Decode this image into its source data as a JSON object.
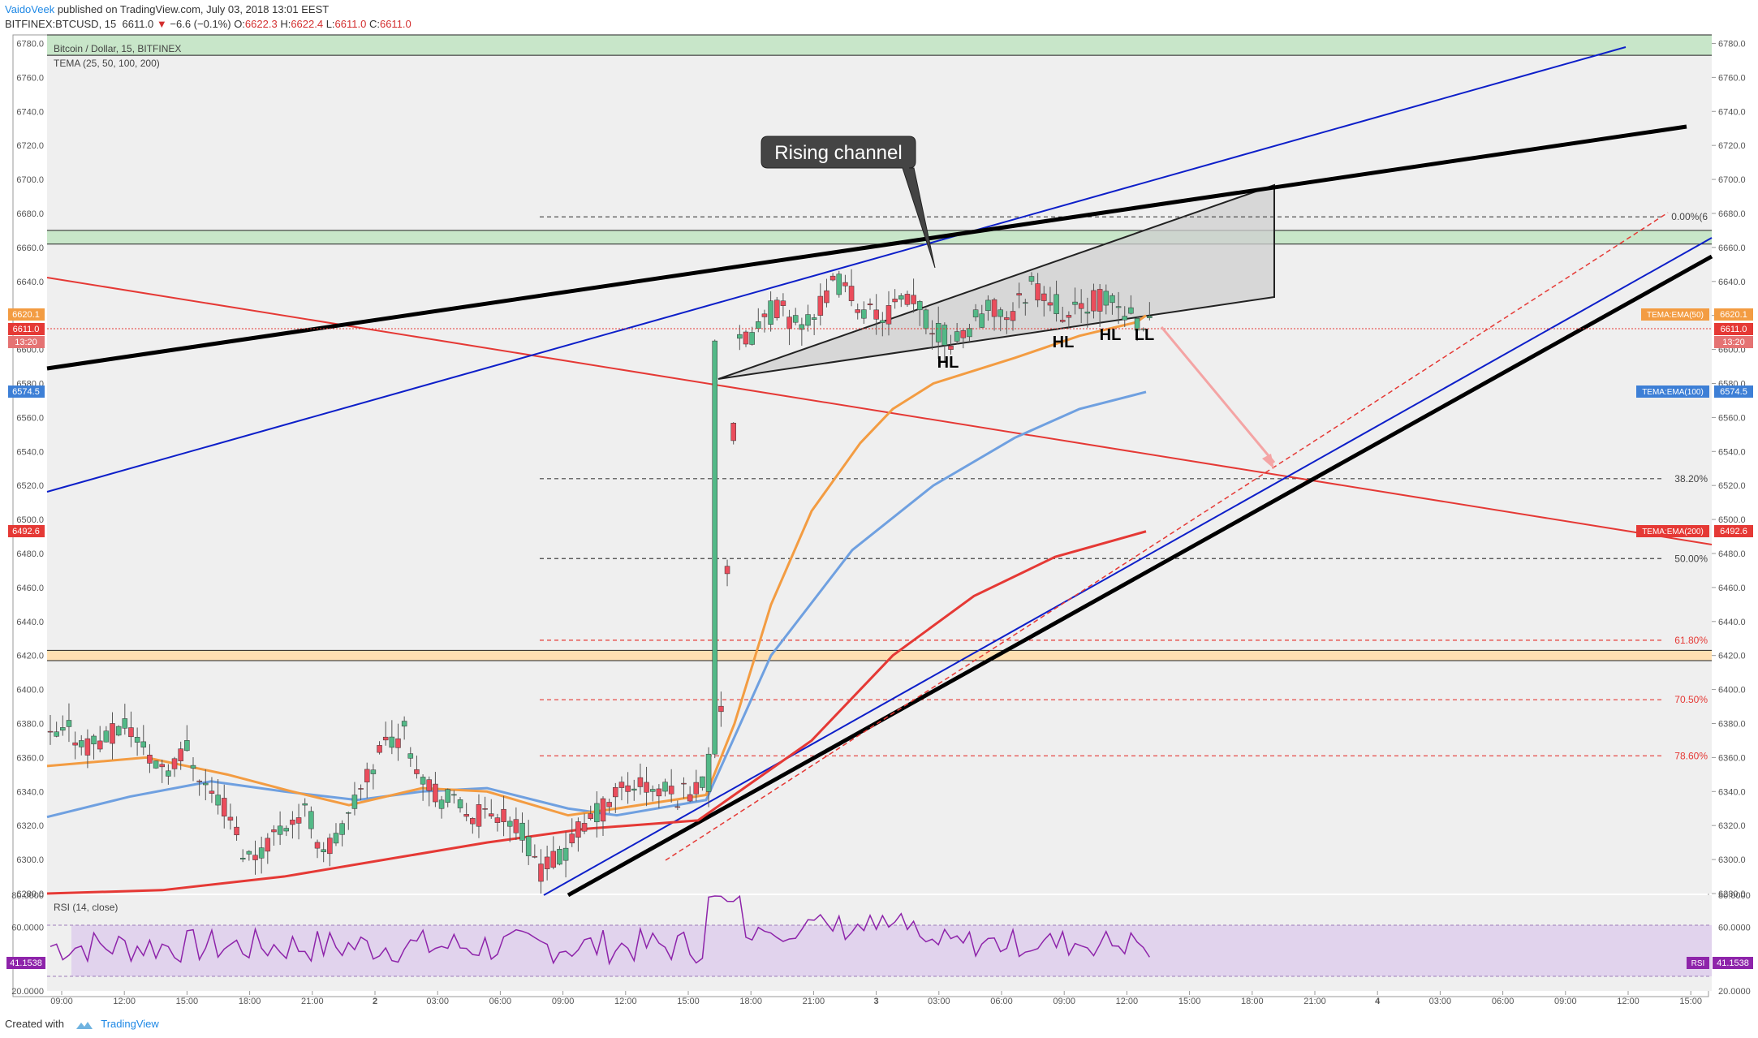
{
  "header": {
    "author": "VaidoVeek",
    "published_text": "published on TradingView.com, July 03, 2018 13:01 EEST",
    "symbol": "BITFINEX:BTCUSD, 15",
    "last": "6611.0",
    "change": "−6.6 (−0.1%)",
    "o_label": "O:",
    "o": "6622.3",
    "h_label": "H:",
    "h": "6622.4",
    "l_label": "L:",
    "l": "6611.0",
    "c_label": "C:",
    "c": "6611.0"
  },
  "legend": {
    "title": "Bitcoin / Dollar, 15, BITFINEX",
    "indicator": "TEMA (25, 50, 100, 200)",
    "rsi": "RSI (14, close)"
  },
  "annotations": {
    "callout": "Rising channel",
    "hl1": "HL",
    "hl2": "HL",
    "hl3": "HL",
    "ll": "LL"
  },
  "fib": {
    "levels": [
      {
        "label": "0.00%(6",
        "price": 6678,
        "color": "#444444"
      },
      {
        "label": "38.20%",
        "price": 6524,
        "color": "#444444"
      },
      {
        "label": "50.00%",
        "price": 6477,
        "color": "#444444"
      },
      {
        "label": "61.80%",
        "price": 6429,
        "color": "#e53935"
      },
      {
        "label": "70.50%",
        "price": 6394,
        "color": "#e53935"
      },
      {
        "label": "78.60%",
        "price": 6361,
        "color": "#e53935"
      }
    ]
  },
  "right_labels": {
    "ema50_name": "TEMA:EMA(50)",
    "ema50_val": "6620.1",
    "last_val": "6611.0",
    "countdown": "13:20",
    "ema100_name": "TEMA:EMA(100)",
    "ema100_val": "6574.5",
    "ema200_name": "TEMA:EMA(200)",
    "ema200_val": "6492.6",
    "rsi_name": "RSI",
    "rsi_val": "41.1538"
  },
  "left_labels": {
    "ema50_val": "6620.1",
    "last_val": "6611.0",
    "countdown": "13:20",
    "ema100_val": "6574.5",
    "ema200_val": "6492.6",
    "rsi_val": "41.1538"
  },
  "footer": {
    "created": "Created with",
    "brand": "TradingView"
  },
  "colors": {
    "up": "#53b987",
    "down": "#eb4d5c",
    "ema50": "#f39c42",
    "ema100": "#6fa0e0",
    "ema200": "#e53935",
    "rsi": "#8e24aa",
    "blue_line": "#0d1fc9"
  },
  "chart_data": {
    "type": "candlestick",
    "title": "Bitcoin / Dollar, 15, BITFINEX",
    "ylim": [
      6280,
      6785
    ],
    "yticks": [
      6280,
      6300,
      6320,
      6340,
      6360,
      6380,
      6400,
      6420,
      6440,
      6460,
      6480,
      6500,
      6520,
      6540,
      6560,
      6580,
      6600,
      6620,
      6640,
      6660,
      6680,
      6700,
      6720,
      6740,
      6760,
      6780
    ],
    "xticks": [
      "09:00",
      "12:00",
      "15:00",
      "18:00",
      "21:00",
      "2",
      "03:00",
      "06:00",
      "09:00",
      "12:00",
      "15:00",
      "18:00",
      "21:00",
      "3",
      "03:00",
      "06:00",
      "09:00",
      "12:00",
      "15:00",
      "18:00",
      "21:00",
      "4",
      "03:00",
      "06:00",
      "09:00",
      "12:00",
      "15:00"
    ],
    "xtick_bold": [
      "2",
      "3",
      "4"
    ],
    "rsi_ylim": [
      20,
      80
    ],
    "rsi_yticks": [
      20,
      60,
      80
    ],
    "rsi_tick_labels": [
      "20.0000",
      "60.0000",
      "80.0000"
    ],
    "rsi_band": [
      30,
      70
    ],
    "rsi_last": 41.1538,
    "support_zones": [
      {
        "from": 6773,
        "to": 6785,
        "color": "#c8e6c9"
      },
      {
        "from": 6662,
        "to": 6670,
        "color": "#c8e6c9"
      },
      {
        "from": 6417,
        "to": 6423,
        "color": "#ffe0b2"
      }
    ],
    "series": [
      {
        "name": "TEMA:EMA(50)",
        "last": 6620.1
      },
      {
        "name": "TEMA:EMA(100)",
        "last": 6574.5
      },
      {
        "name": "TEMA:EMA(200)",
        "last": 6492.6
      }
    ]
  }
}
